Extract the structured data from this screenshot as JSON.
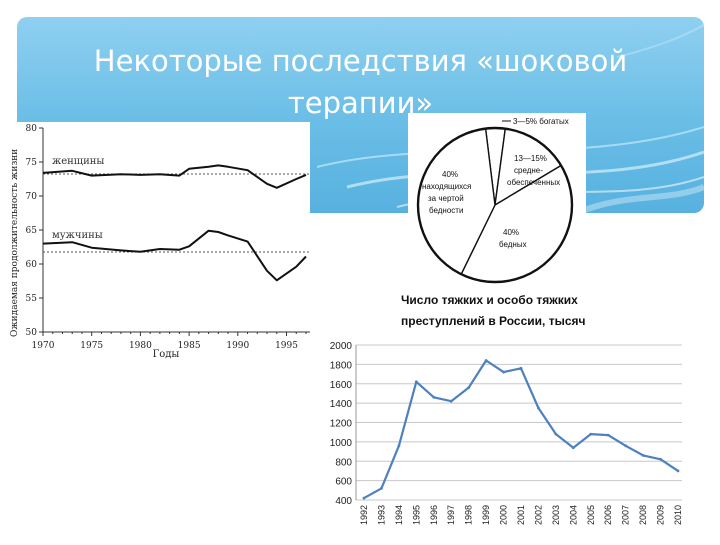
{
  "slide": {
    "title_line1": "Некоторые последствия «шоковой",
    "title_line2": "терапии»"
  },
  "colors": {
    "banner": "#69bde6",
    "line_chart": "#4f81bd",
    "ink": "#1a1a1a"
  },
  "life_chart": {
    "ylabel": "Ожидаемая продолжительность жизни",
    "xlabel": "Годы",
    "series_women_label": "женщины",
    "series_men_label": "мужчины",
    "y_ticks": [
      "80",
      "75",
      "70",
      "65",
      "60",
      "55",
      "50"
    ],
    "x_ticks": [
      "1970",
      "1975",
      "1980",
      "1985",
      "1990",
      "1995"
    ]
  },
  "pie": {
    "labels": {
      "rich": "3—5% богатых",
      "middle": "13—15% средне- обеспеченных",
      "poor": "40% бедных",
      "below": "40% находящихся за чертой бедности"
    }
  },
  "crime_chart": {
    "title_line1": "Число тяжких и особо тяжких",
    "title_line2": "преступлений в России, тысяч"
  },
  "chart_data": [
    {
      "type": "line",
      "title": "",
      "xlabel": "Годы",
      "ylabel": "Ожидаемая продолжительность жизни",
      "xlim": [
        1970,
        1997
      ],
      "ylim": [
        50,
        80
      ],
      "grid": false,
      "x": [
        1970,
        1973,
        1975,
        1978,
        1980,
        1982,
        1984,
        1985,
        1987,
        1988,
        1989,
        1991,
        1993,
        1994,
        1996,
        1997
      ],
      "series": [
        {
          "name": "женщины",
          "values": [
            73.4,
            73.7,
            73.0,
            73.2,
            73.1,
            73.2,
            73.0,
            74.0,
            74.3,
            74.5,
            74.3,
            73.8,
            71.8,
            71.2,
            72.5,
            73.1
          ]
        },
        {
          "name": "мужчины",
          "values": [
            63.0,
            63.2,
            62.4,
            62.0,
            61.8,
            62.2,
            62.1,
            62.6,
            64.9,
            64.7,
            64.2,
            63.3,
            59.0,
            57.6,
            59.6,
            61.1
          ]
        }
      ]
    },
    {
      "type": "pie",
      "title": "",
      "categories": [
        "3—5% богатых",
        "13—15% средне- обеспеченных",
        "40% бедных",
        "40% находящихся за чертой бедности"
      ],
      "values": [
        4,
        14,
        40,
        40
      ]
    },
    {
      "type": "line",
      "title": "Число тяжких и особо тяжких преступлений в России, тысяч",
      "xlabel": "",
      "ylabel": "",
      "ylim": [
        400,
        2000
      ],
      "grid": true,
      "categories": [
        "1992",
        "1993",
        "1994",
        "1995",
        "1996",
        "1997",
        "1998",
        "1999",
        "2000",
        "2001",
        "2002",
        "2003",
        "2004",
        "2005",
        "2006",
        "2007",
        "2008",
        "2009",
        "2010"
      ],
      "series": [
        {
          "values": [
            420,
            520,
            960,
            1620,
            1460,
            1420,
            1560,
            1840,
            1720,
            1760,
            1350,
            1080,
            940,
            1080,
            1070,
            960,
            860,
            820,
            700
          ]
        }
      ]
    }
  ]
}
